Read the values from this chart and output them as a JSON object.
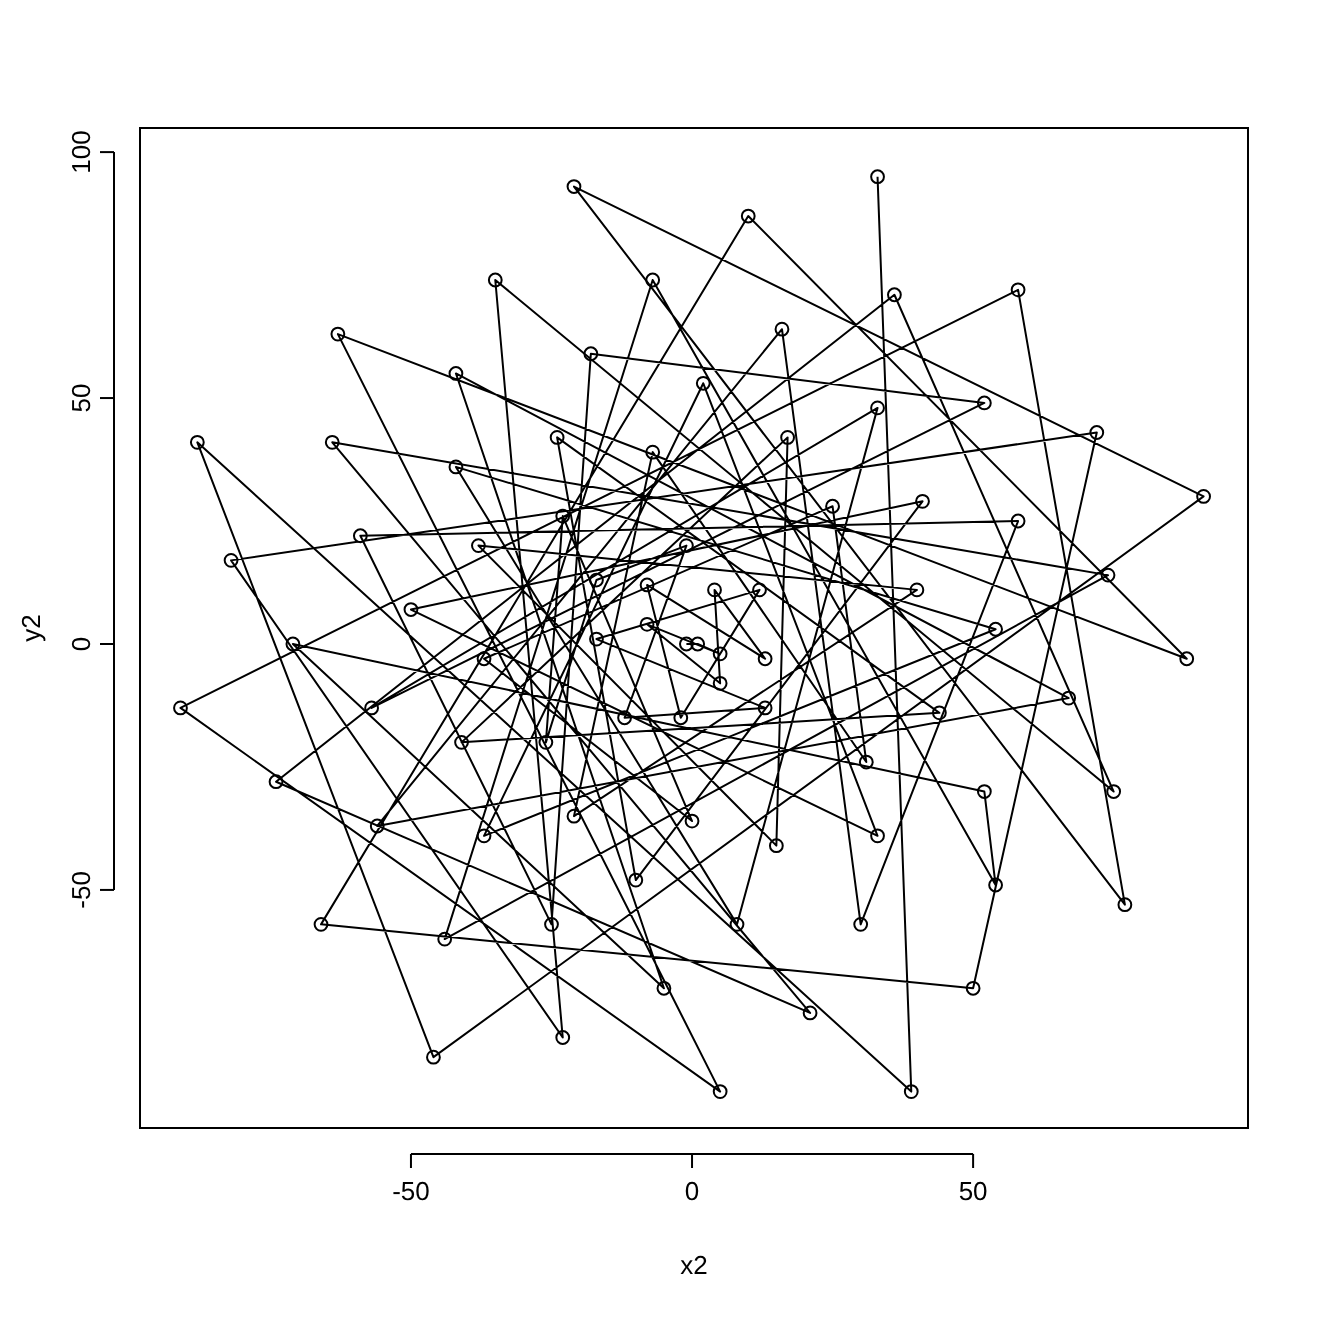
{
  "chart_data": {
    "type": "line",
    "xlabel": "x2",
    "ylabel": "y2",
    "marker": "circle",
    "xlim": [
      -98.2,
      98.9
    ],
    "ylim": [
      -98.4,
      104.9
    ],
    "xticks": [
      -50,
      0,
      50
    ],
    "yticks": [
      -50,
      0,
      50,
      100
    ],
    "grid": false,
    "series": [
      {
        "color": "#000000",
        "x": [
          -1,
          1,
          5,
          -8,
          5,
          4,
          13,
          -8,
          -2,
          12,
          -17,
          13,
          -12,
          -1,
          -17,
          -26,
          -23,
          0,
          -37,
          25,
          31,
          -7,
          -21,
          40,
          -38,
          15,
          17,
          -41,
          44,
          -24,
          -10,
          41,
          -50,
          33,
          2,
          -37,
          54,
          -42,
          8,
          33,
          -57,
          52,
          -18,
          -25,
          -59,
          58,
          30,
          16,
          -56,
          67,
          -42,
          -5,
          -71,
          52,
          54,
          -7,
          -44,
          74,
          -64,
          21,
          -74,
          36,
          75,
          -35,
          -23,
          -82,
          72,
          50,
          -66,
          10,
          88,
          -63,
          5,
          -91,
          58,
          77,
          -21,
          91,
          -46,
          -88,
          39,
          33
        ],
        "values": [
          0,
          0,
          -2,
          4,
          -8,
          11,
          -3,
          12,
          -15,
          11,
          1,
          -13,
          -15,
          20,
          13,
          -20,
          26,
          -36,
          -3,
          28,
          -24,
          39,
          -35,
          11,
          20,
          -41,
          42,
          -20,
          -14,
          42,
          -48,
          29,
          7,
          -39,
          53,
          -39,
          3,
          36,
          -57,
          48,
          -13,
          49,
          59,
          -57,
          22,
          25,
          -57,
          64,
          -37,
          -11,
          55,
          -70,
          0,
          -30,
          -49,
          74,
          -60,
          14,
          41,
          -75,
          -28,
          71,
          -30,
          74,
          -80,
          17,
          43,
          -70,
          -57,
          87,
          -3,
          63,
          -91,
          -13,
          72,
          -53,
          93,
          30,
          -84,
          41,
          -91,
          95
        ]
      }
    ]
  }
}
